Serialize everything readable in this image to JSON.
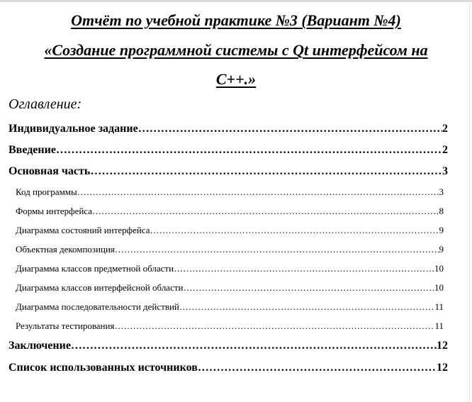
{
  "title": {
    "line1": "Отчёт по учебной практике №3 (Вариант №4)",
    "line2": "«Создание программной системы с Qt интерфейсом на",
    "line3": "C++.»"
  },
  "toc": {
    "heading": "Оглавление:",
    "entries": [
      {
        "label": "Индивидуальное задание",
        "page": "2",
        "level": 1
      },
      {
        "label": "Введение",
        "page": "2",
        "level": 1
      },
      {
        "label": "Основная часть",
        "page": "3",
        "level": 1
      },
      {
        "label": "Код программы",
        "page": "3",
        "level": 2
      },
      {
        "label": "Формы интерфейса",
        "page": "8",
        "level": 2
      },
      {
        "label": "Диаграмма состояний интерфейса",
        "page": "9",
        "level": 2
      },
      {
        "label": "Объектная декомпозиция",
        "page": "9",
        "level": 2
      },
      {
        "label": "Диаграмма классов предметной области",
        "page": "10",
        "level": 2
      },
      {
        "label": "Диаграмма классов интерфейсной области",
        "page": "10",
        "level": 2
      },
      {
        "label": "Диаграмма последовательности действий",
        "page": "11",
        "level": 2
      },
      {
        "label": "Результаты тестирования",
        "page": "11",
        "level": 2
      },
      {
        "label": "Заключение",
        "page": "12",
        "level": 1
      },
      {
        "label": "Список использованных источников",
        "page": "12",
        "level": 1
      }
    ]
  }
}
